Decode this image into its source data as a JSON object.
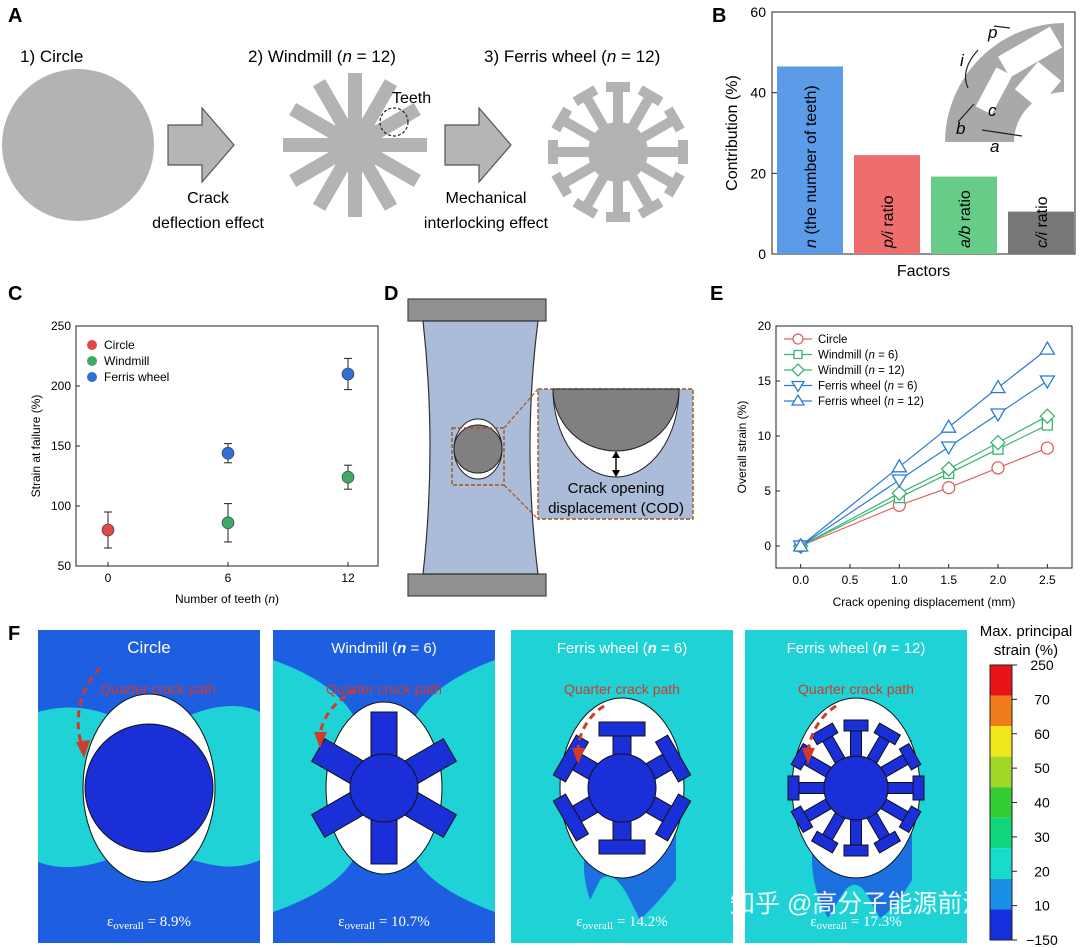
{
  "panel_letters": {
    "a": "A",
    "b": "B",
    "c": "C",
    "d": "D",
    "e": "E",
    "f": "F"
  },
  "panelA": {
    "items": [
      {
        "label": "1) Circle"
      },
      {
        "label": "2) Windmill (",
        "n": "n",
        "tail": " = 12)"
      },
      {
        "label": "3) Ferris wheel (",
        "n": "n",
        "tail": " = 12)"
      }
    ],
    "teeth_label": "Teeth",
    "arrow1": [
      "Crack",
      "deflection effect"
    ],
    "arrow2": [
      "Mechanical",
      "interlocking effect"
    ],
    "colors": {
      "shape": "#b3b3b3",
      "arrow": "#b5b5b5"
    }
  },
  "panelB": {
    "chart_data": {
      "type": "bar",
      "categories": [
        "n (the number of teeth)",
        "p/i ratio",
        "a/b ratio",
        "c/i ratio"
      ],
      "values": [
        46.5,
        24.5,
        19.2,
        10.5
      ],
      "colors": [
        "#5b9be8",
        "#ee6e6e",
        "#66cc88",
        "#777777"
      ],
      "xlabel": "Factors",
      "ylabel": "Contribution (%)",
      "ylim": [
        0,
        60
      ],
      "yticks": [
        "0",
        "20",
        "40",
        "60"
      ]
    },
    "inset_labels": [
      "p",
      "i",
      "c",
      "b",
      "a"
    ]
  },
  "panelC": {
    "chart_data": {
      "type": "scatter",
      "xlabel": "Number of teeth (n)",
      "ylabel": "Strain at failure (%)",
      "ylim": [
        50,
        250
      ],
      "xticks": [
        "0",
        "6",
        "12"
      ],
      "yticks": [
        "50",
        "100",
        "150",
        "200",
        "250"
      ],
      "series": [
        {
          "name": "Circle",
          "color": "#e04848",
          "points": [
            {
              "x": 0,
              "y": 80,
              "err": 15
            }
          ]
        },
        {
          "name": "Windmill",
          "color": "#3caa66",
          "points": [
            {
              "x": 6,
              "y": 86,
              "err": 16
            },
            {
              "x": 12,
              "y": 124,
              "err": 10
            }
          ]
        },
        {
          "name": "Ferris wheel",
          "color": "#2f6fd6",
          "points": [
            {
              "x": 6,
              "y": 144,
              "err": 8
            },
            {
              "x": 12,
              "y": 210,
              "err": 13
            }
          ]
        }
      ]
    }
  },
  "panelD": {
    "cod_label": [
      "Crack opening",
      "displacement (COD)"
    ],
    "colors": {
      "specimen": "#aabcd8",
      "grip": "#909090",
      "inclusion": "#808080"
    }
  },
  "panelE": {
    "chart_data": {
      "type": "line",
      "xlabel": "Crack opening displacement (mm)",
      "ylabel": "Overall strain (%)",
      "xlim": [
        -0.25,
        2.75
      ],
      "ylim": [
        -2,
        20
      ],
      "xticks": [
        "0.0",
        "0.5",
        "1.0",
        "1.5",
        "2.0",
        "2.5"
      ],
      "yticks": [
        "0",
        "5",
        "10",
        "15",
        "20"
      ],
      "x": [
        0,
        1.0,
        1.5,
        2.0,
        2.5
      ],
      "series": [
        {
          "name": "Circle",
          "color": "#e56060",
          "marker": "circle",
          "values": [
            0,
            3.7,
            5.3,
            7.1,
            8.9
          ]
        },
        {
          "name": "Windmill (n = 6)",
          "color": "#3cb371",
          "marker": "square",
          "values": [
            0,
            4.4,
            6.6,
            8.8,
            11.0
          ]
        },
        {
          "name": "Windmill (n = 12)",
          "color": "#3cb371",
          "marker": "diamond",
          "values": [
            0,
            4.8,
            7.0,
            9.4,
            11.8
          ]
        },
        {
          "name": "Ferris wheel (n = 6)",
          "color": "#2a7ad6",
          "marker": "tri-down",
          "values": [
            0,
            6.0,
            9.0,
            12.0,
            15.0
          ]
        },
        {
          "name": "Ferris wheel (n = 12)",
          "color": "#2a7ad6",
          "marker": "tri-up",
          "values": [
            0,
            7.2,
            10.8,
            14.4,
            17.9
          ]
        }
      ]
    }
  },
  "panelF": {
    "crack_label": "Quarter crack path",
    "items": [
      {
        "title": "Circle",
        "strain": "ε",
        "sub": "overall",
        "value": " = 8.9%"
      },
      {
        "title": "Windmill (",
        "n": "n",
        "tail": " = 6)",
        "strain": "ε",
        "sub": "overall",
        "value": " = 10.7%"
      },
      {
        "title": "Ferris wheel (",
        "n": "n",
        "tail": " = 6)",
        "strain": "ε",
        "sub": "overall",
        "value": " = 14.2%"
      },
      {
        "title": "Ferris wheel (",
        "n": "n",
        "tail": " = 12)",
        "strain": "ε",
        "sub": "overall",
        "value": " = 17.3%"
      }
    ],
    "colorbar_title": [
      "Max. principal",
      "strain (%)"
    ],
    "colorbar_ticks": [
      "250",
      "70",
      "60",
      "50",
      "40",
      "30",
      "20",
      "10",
      "−150"
    ],
    "colorbar_colors": [
      "#e8141a",
      "#f07c1e",
      "#f0e61c",
      "#a0d82a",
      "#33cc33",
      "#10d67c",
      "#16dccc",
      "#1a8fe6",
      "#1430dc"
    ],
    "bg_colors": {
      "dark_blue": "#1d5fe0",
      "cyan": "#1ed2d6",
      "inclusion": "#1a2fd8"
    }
  },
  "watermark": "知乎 @高分子能源前沿"
}
